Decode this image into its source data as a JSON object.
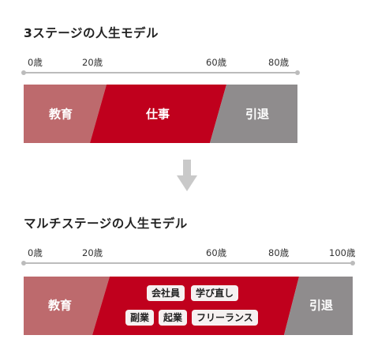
{
  "model1": {
    "title": "3ステージの人生モデル",
    "ticks": [
      "0歳",
      "20歳",
      "60歳",
      "80歳"
    ],
    "segments": [
      {
        "label": "教育",
        "color": "#bd6a6d"
      },
      {
        "label": "仕事",
        "color": "#c0001d"
      },
      {
        "label": "引退",
        "color": "#8f8c8d"
      }
    ]
  },
  "model2": {
    "title": "マルチステージの人生モデル",
    "ticks": [
      "0歳",
      "20歳",
      "60歳",
      "80歳",
      "100歳"
    ],
    "segments": [
      {
        "label": "教育",
        "color": "#bd6a6d"
      },
      {
        "label": "",
        "color": "#c0001d"
      },
      {
        "label": "引退",
        "color": "#8f8c8d"
      }
    ],
    "tags": [
      "会社員",
      "学び直し",
      "副業",
      "起業",
      "フリーランス"
    ]
  },
  "arrow": {
    "icon": "down-arrow-icon",
    "color": "#c9c9c9"
  }
}
